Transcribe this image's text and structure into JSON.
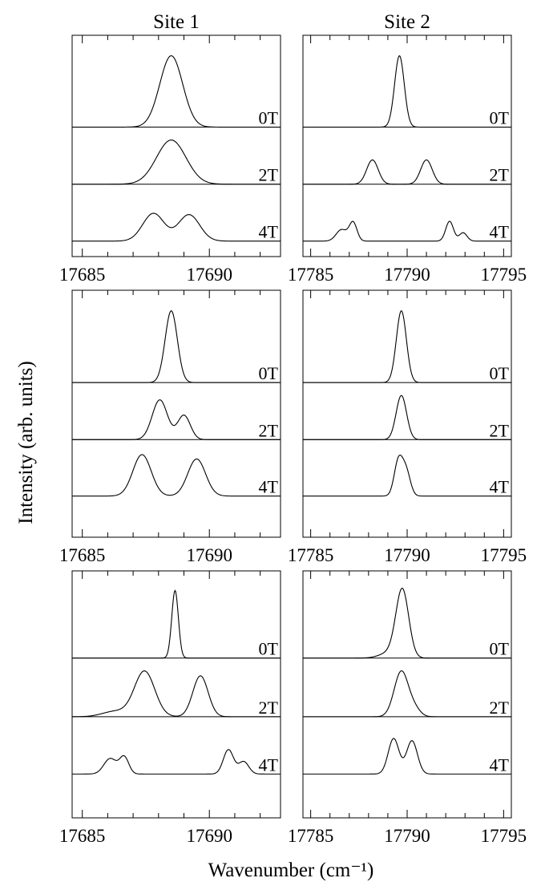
{
  "chart_data": {
    "type": "line",
    "ylabel": "Intensity (arb. units)",
    "xlabel": "Wavenumber (cm⁻¹)",
    "columns": [
      {
        "title": "Site 1",
        "xlim": [
          17684.6,
          17692.8
        ],
        "major_ticks": [
          17685,
          17690
        ],
        "tick_labels": [
          "17685",
          "17690"
        ],
        "minor_tick_step": 1
      },
      {
        "title": "Site 2",
        "xlim": [
          17784.6,
          17795.4
        ],
        "major_ticks": [
          17785,
          17790,
          17795
        ],
        "tick_labels": [
          "17785",
          "17790",
          "17795"
        ],
        "minor_tick_step": 1
      }
    ],
    "panels": [
      {
        "row": 0,
        "col": 0,
        "traces": [
          {
            "field": "0T",
            "peaks": [
              [
                17688.5,
                1.0,
                0.45
              ]
            ]
          },
          {
            "field": "2T",
            "peaks": [
              [
                17688.5,
                1.0,
                0.58
              ]
            ]
          },
          {
            "field": "4T",
            "peaks": [
              [
                17687.8,
                0.63,
                0.42
              ],
              [
                17689.2,
                0.6,
                0.42
              ]
            ]
          }
        ]
      },
      {
        "row": 0,
        "col": 1,
        "traces": [
          {
            "field": "0T",
            "peaks": [
              [
                17789.6,
                1.0,
                0.25
              ]
            ]
          },
          {
            "field": "2T",
            "peaks": [
              [
                17788.2,
                0.55,
                0.3
              ],
              [
                17791.0,
                0.55,
                0.3
              ]
            ]
          },
          {
            "field": "4T",
            "peaks": [
              [
                17786.6,
                0.26,
                0.28
              ],
              [
                17787.2,
                0.42,
                0.2
              ],
              [
                17792.2,
                0.45,
                0.2
              ],
              [
                17792.9,
                0.19,
                0.2
              ]
            ]
          }
        ]
      },
      {
        "row": 1,
        "col": 0,
        "traces": [
          {
            "field": "0T",
            "peaks": [
              [
                17688.5,
                1.0,
                0.24
              ]
            ]
          },
          {
            "field": "2T",
            "peaks": [
              [
                17688.05,
                0.9,
                0.3
              ],
              [
                17689.0,
                0.55,
                0.25
              ]
            ]
          },
          {
            "field": "4T",
            "peaks": [
              [
                17687.35,
                0.95,
                0.36
              ],
              [
                17689.5,
                0.85,
                0.35
              ]
            ]
          }
        ]
      },
      {
        "row": 1,
        "col": 1,
        "traces": [
          {
            "field": "0T",
            "peaks": [
              [
                17789.7,
                1.0,
                0.26
              ]
            ]
          },
          {
            "field": "2T",
            "peaks": [
              [
                17789.7,
                1.0,
                0.27
              ]
            ]
          },
          {
            "field": "4T",
            "peaks": [
              [
                17789.55,
                0.8,
                0.22
              ],
              [
                17789.95,
                0.55,
                0.22
              ]
            ]
          }
        ]
      },
      {
        "row": 2,
        "col": 0,
        "traces": [
          {
            "field": "0T",
            "peaks": [
              [
                17688.65,
                1.0,
                0.13
              ]
            ]
          },
          {
            "field": "2T",
            "peaks": [
              [
                17687.45,
                1.0,
                0.4
              ],
              [
                17689.65,
                0.9,
                0.3
              ],
              [
                17686.3,
                0.12,
                0.5
              ]
            ]
          },
          {
            "field": "4T",
            "peaks": [
              [
                17686.1,
                0.35,
                0.25
              ],
              [
                17686.65,
                0.38,
                0.18
              ],
              [
                17690.75,
                0.55,
                0.2
              ],
              [
                17691.35,
                0.28,
                0.2
              ]
            ]
          }
        ]
      },
      {
        "row": 2,
        "col": 1,
        "traces": [
          {
            "field": "0T",
            "peaks": [
              [
                17789.75,
                1.0,
                0.33
              ],
              [
                17789.1,
                0.08,
                0.5
              ]
            ]
          },
          {
            "field": "2T",
            "peaks": [
              [
                17789.7,
                1.0,
                0.37
              ],
              [
                17790.4,
                0.15,
                0.3
              ]
            ]
          },
          {
            "field": "4T",
            "peaks": [
              [
                17789.3,
                0.8,
                0.28
              ],
              [
                17790.25,
                0.75,
                0.28
              ]
            ]
          }
        ]
      }
    ]
  }
}
